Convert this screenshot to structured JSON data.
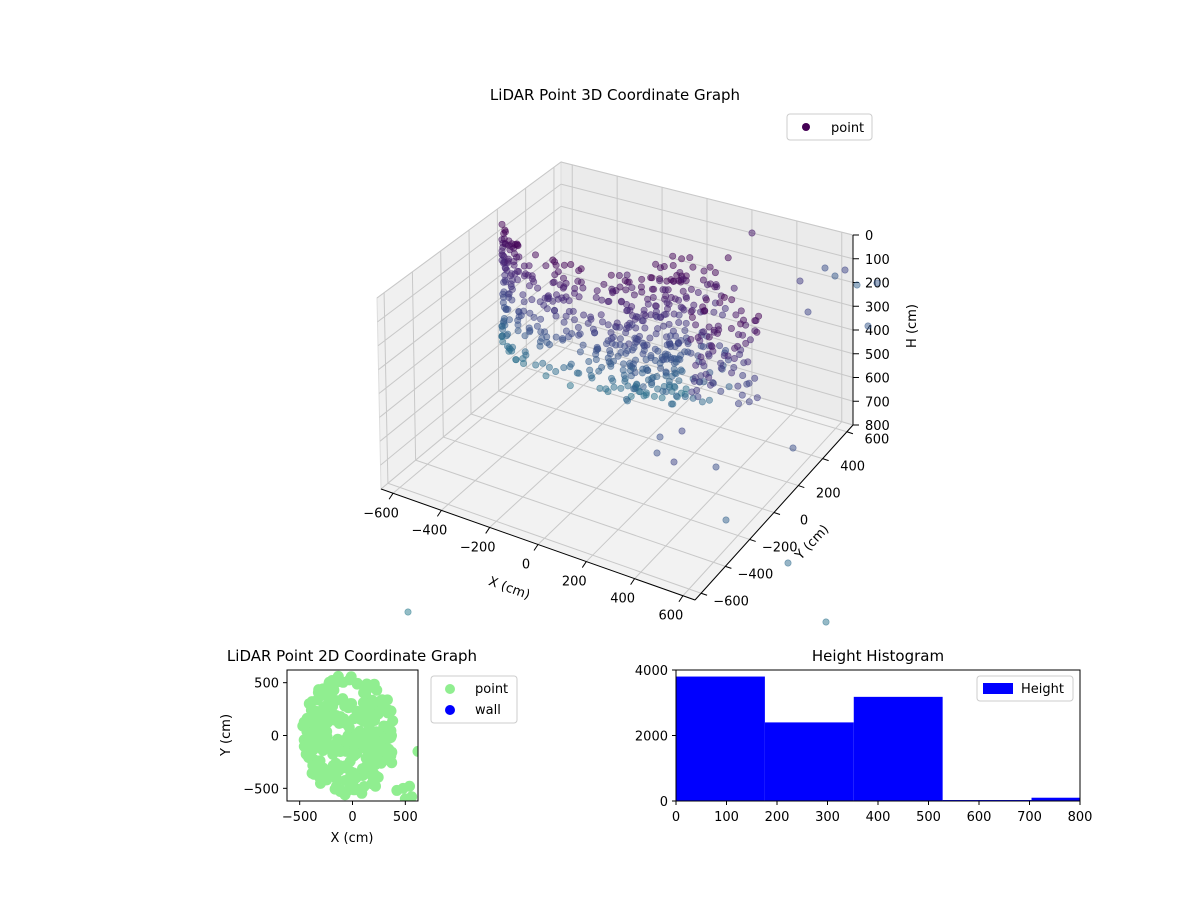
{
  "chart_data": [
    {
      "type": "scatter",
      "projection": "3d",
      "title": "LiDAR Point 3D Coordinate Graph",
      "xlabel": "X (cm)",
      "ylabel": "Y (cm)",
      "zlabel": "H (cm)",
      "xlim": [
        -650,
        650
      ],
      "ylim": [
        -650,
        650
      ],
      "zlim": [
        800,
        0
      ],
      "xticks": [
        -600,
        -400,
        -200,
        0,
        200,
        400,
        600
      ],
      "yticks": [
        -600,
        -400,
        -200,
        0,
        200,
        400,
        600
      ],
      "zticks": [
        0,
        100,
        200,
        300,
        400,
        500,
        600,
        700,
        800
      ],
      "legend": {
        "entries": [
          "point"
        ],
        "placement": "top-right"
      },
      "grid": true,
      "series": [
        {
          "name": "point",
          "colormap": "viridis",
          "color_by": "H",
          "description_values": {
            "approx_point_count": 9300,
            "x_range": [
              -550,
              600
            ],
            "y_range": [
              -600,
              600
            ],
            "h_range": [
              0,
              800
            ]
          }
        }
      ]
    },
    {
      "type": "scatter",
      "title": "LiDAR Point 2D Coordinate Graph",
      "xlabel": "X (cm)",
      "ylabel": "Y (cm)",
      "xlim": [
        -620,
        620
      ],
      "ylim": [
        -620,
        620
      ],
      "xticks": [
        -500,
        0,
        500
      ],
      "yticks": [
        -500,
        0,
        500
      ],
      "legend": {
        "entries": [
          "point",
          "wall"
        ],
        "placement": "outside-right"
      },
      "series": [
        {
          "name": "point",
          "color": "#90ee90"
        },
        {
          "name": "wall",
          "color": "#0000ff",
          "values": []
        }
      ]
    },
    {
      "type": "bar",
      "subtype": "histogram",
      "title": "Height Histogram",
      "xlim": [
        0,
        800
      ],
      "ylim": [
        0,
        4000
      ],
      "xticks": [
        0,
        100,
        200,
        300,
        400,
        500,
        600,
        700,
        800
      ],
      "yticks": [
        0,
        2000,
        4000
      ],
      "legend": {
        "entries": [
          "Height"
        ],
        "placement": "top-right"
      },
      "series": [
        {
          "name": "Height",
          "color": "#0000ff",
          "bins": [
            [
              0,
              176
            ],
            [
              176,
              352
            ],
            [
              352,
              528
            ],
            [
              528,
              704
            ],
            [
              704,
              880
            ]
          ],
          "values": [
            3800,
            2400,
            3180,
            30,
            100
          ]
        }
      ]
    }
  ]
}
